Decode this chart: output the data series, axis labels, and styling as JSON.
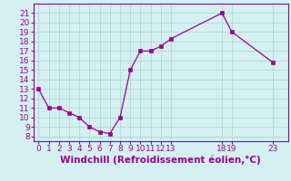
{
  "x": [
    0,
    1,
    2,
    3,
    4,
    5,
    6,
    7,
    8,
    9,
    10,
    11,
    12,
    13,
    18,
    19,
    23
  ],
  "y": [
    13,
    11,
    11,
    10.5,
    10,
    9,
    8.5,
    8.3,
    10,
    15,
    17,
    17,
    17.5,
    18.3,
    21,
    19,
    15.8
  ],
  "line_color": "#990099",
  "marker": "s",
  "marker_size": 2.5,
  "background_color": "#d4f0f0",
  "grid_color": "#b0d8d8",
  "xlabel": "Windchill (Refroidissement éolien,°C)",
  "xlim": [
    -0.5,
    24.5
  ],
  "ylim": [
    7.5,
    22
  ],
  "xticks": [
    0,
    1,
    2,
    3,
    4,
    5,
    6,
    7,
    8,
    9,
    10,
    11,
    12,
    13,
    18,
    19,
    23
  ],
  "yticks": [
    8,
    9,
    10,
    11,
    12,
    13,
    14,
    15,
    16,
    17,
    18,
    19,
    20,
    21
  ],
  "tick_fontsize": 6.5,
  "xlabel_fontsize": 7.5
}
